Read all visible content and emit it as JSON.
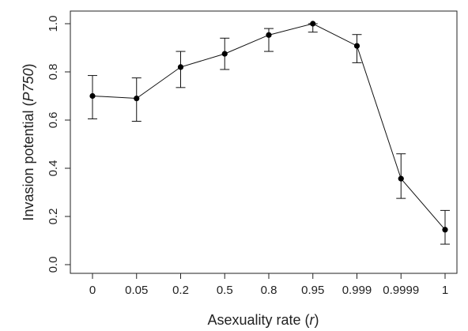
{
  "chart_data": {
    "type": "line",
    "xlabel": {
      "text": "Asexuality rate (",
      "var": "r",
      "close": ")"
    },
    "ylabel": {
      "text": "Invasion potential (",
      "var": "P750",
      "close": ")"
    },
    "categories": [
      "0",
      "0.05",
      "0.2",
      "0.5",
      "0.8",
      "0.95",
      "0.999",
      "0.9999",
      "1"
    ],
    "ylim": [
      0.0,
      1.0
    ],
    "yticks": [
      "0.0",
      "0.2",
      "0.4",
      "0.6",
      "0.8",
      "1.0"
    ],
    "series": [
      {
        "values": [
          0.7,
          0.69,
          0.82,
          0.875,
          0.953,
          1.0,
          0.908,
          0.357,
          0.145
        ],
        "error_low": [
          0.605,
          0.595,
          0.735,
          0.81,
          0.885,
          0.965,
          0.838,
          0.275,
          0.085
        ],
        "error_high": [
          0.785,
          0.775,
          0.885,
          0.94,
          0.98,
          1.0,
          0.955,
          0.46,
          0.225
        ]
      }
    ],
    "grid": false,
    "marker": "filled-circle",
    "colors": {
      "line": "#111111",
      "marker": "#000000",
      "axis": "#222222"
    }
  }
}
